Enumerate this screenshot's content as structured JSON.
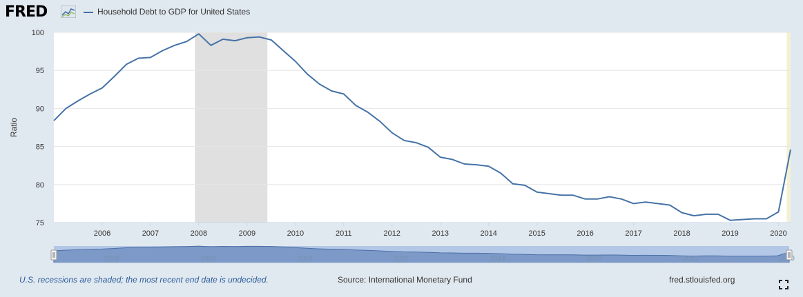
{
  "header": {
    "logo_text": "FRED",
    "logo_icon": "trend-line-icon",
    "legend_label": "Household Debt to GDP for United States"
  },
  "colors": {
    "page_bg": "#e1e9f0",
    "plot_bg": "#ffffff",
    "line": "#4572a7",
    "recession": "#e0e0e0",
    "undecided": "#f3f1d3",
    "navigator_bg": "#b3c7e6",
    "navigator_fill": "#7c99c8",
    "footer_note": "#2b5c9a"
  },
  "footer": {
    "note": "U.S. recessions are shaded; the most recent end date is undecided.",
    "source": "Source: International Monetary Fund",
    "site": "fred.stlouisfed.org",
    "fullscreen_icon": "fullscreen-icon"
  },
  "chart_data": {
    "type": "line",
    "title": "Household Debt to GDP for United States",
    "ylabel": "Ratio",
    "xlabel": "",
    "xlim": [
      2005.0,
      2020.25
    ],
    "ylim": [
      75,
      100
    ],
    "yticks": [
      75,
      80,
      85,
      90,
      95,
      100
    ],
    "xticks": [
      2006,
      2007,
      2008,
      2009,
      2010,
      2011,
      2012,
      2013,
      2014,
      2015,
      2016,
      2017,
      2018,
      2019,
      2020
    ],
    "grid": "horizontal",
    "legend": "top-left",
    "recessions": [
      {
        "start": 2007.92,
        "end": 2009.42
      }
    ],
    "undecided_recession_start": 2020.17,
    "navigator_labels": [
      "2006",
      "2008",
      "2010",
      "2012",
      "2014",
      "2016",
      "2018",
      "2020"
    ],
    "series": [
      {
        "name": "Household Debt to GDP for United States",
        "x": [
          2005.0,
          2005.25,
          2005.5,
          2005.75,
          2006.0,
          2006.25,
          2006.5,
          2006.75,
          2007.0,
          2007.25,
          2007.5,
          2007.75,
          2008.0,
          2008.25,
          2008.5,
          2008.75,
          2009.0,
          2009.25,
          2009.5,
          2009.75,
          2010.0,
          2010.25,
          2010.5,
          2010.75,
          2011.0,
          2011.25,
          2011.5,
          2011.75,
          2012.0,
          2012.25,
          2012.5,
          2012.75,
          2013.0,
          2013.25,
          2013.5,
          2013.75,
          2014.0,
          2014.25,
          2014.5,
          2014.75,
          2015.0,
          2015.25,
          2015.5,
          2015.75,
          2016.0,
          2016.25,
          2016.5,
          2016.75,
          2017.0,
          2017.25,
          2017.5,
          2017.75,
          2018.0,
          2018.25,
          2018.5,
          2018.75,
          2019.0,
          2019.25,
          2019.5,
          2019.75,
          2020.0,
          2020.25
        ],
        "values": [
          88.4,
          90.0,
          91.0,
          91.9,
          92.7,
          94.2,
          95.8,
          96.6,
          96.7,
          97.6,
          98.3,
          98.8,
          99.8,
          98.3,
          99.1,
          98.9,
          99.3,
          99.4,
          99.0,
          97.6,
          96.2,
          94.5,
          93.2,
          92.3,
          91.9,
          90.4,
          89.5,
          88.3,
          86.8,
          85.8,
          85.5,
          84.9,
          83.6,
          83.3,
          82.7,
          82.6,
          82.4,
          81.5,
          80.1,
          79.9,
          79.0,
          78.8,
          78.6,
          78.6,
          78.1,
          78.1,
          78.4,
          78.1,
          77.5,
          77.7,
          77.5,
          77.3,
          76.3,
          75.9,
          76.1,
          76.1,
          75.3,
          75.4,
          75.5,
          75.5,
          76.4,
          84.6
        ]
      }
    ]
  }
}
